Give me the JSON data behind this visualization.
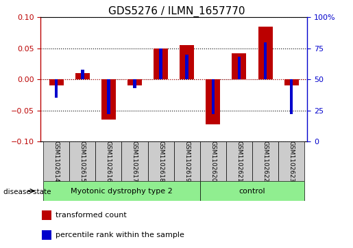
{
  "title": "GDS5276 / ILMN_1657770",
  "samples": [
    "GSM1102614",
    "GSM1102615",
    "GSM1102616",
    "GSM1102617",
    "GSM1102618",
    "GSM1102619",
    "GSM1102620",
    "GSM1102621",
    "GSM1102622",
    "GSM1102623"
  ],
  "transformed_count": [
    -0.01,
    0.01,
    -0.065,
    -0.01,
    0.05,
    0.055,
    -0.072,
    0.042,
    0.085,
    -0.01
  ],
  "percentile_rank": [
    35,
    58,
    22,
    43,
    75,
    70,
    22,
    68,
    80,
    22
  ],
  "red_color": "#BB0000",
  "blue_color": "#0000CC",
  "red_bar_width": 0.55,
  "blue_bar_width": 0.12,
  "ylim_left": [
    -0.1,
    0.1
  ],
  "ylim_right": [
    0,
    100
  ],
  "yticks_left": [
    -0.1,
    -0.05,
    0,
    0.05,
    0.1
  ],
  "yticks_right": [
    0,
    25,
    50,
    75,
    100
  ],
  "ytick_labels_right": [
    "0",
    "25",
    "50",
    "75",
    "100%"
  ],
  "disease_groups": [
    {
      "label": "Myotonic dystrophy type 2",
      "indices": [
        0,
        1,
        2,
        3,
        4,
        5
      ],
      "color": "#90EE90"
    },
    {
      "label": "control",
      "indices": [
        6,
        7,
        8,
        9
      ],
      "color": "#90EE90"
    }
  ],
  "disease_state_label": "disease state",
  "legend_items": [
    {
      "label": "transformed count",
      "color": "#BB0000"
    },
    {
      "label": "percentile rank within the sample",
      "color": "#0000CC"
    }
  ],
  "title_fontsize": 11,
  "tick_fontsize": 8,
  "sample_fontsize": 6.5,
  "legend_fontsize": 8,
  "disease_fontsize": 8
}
